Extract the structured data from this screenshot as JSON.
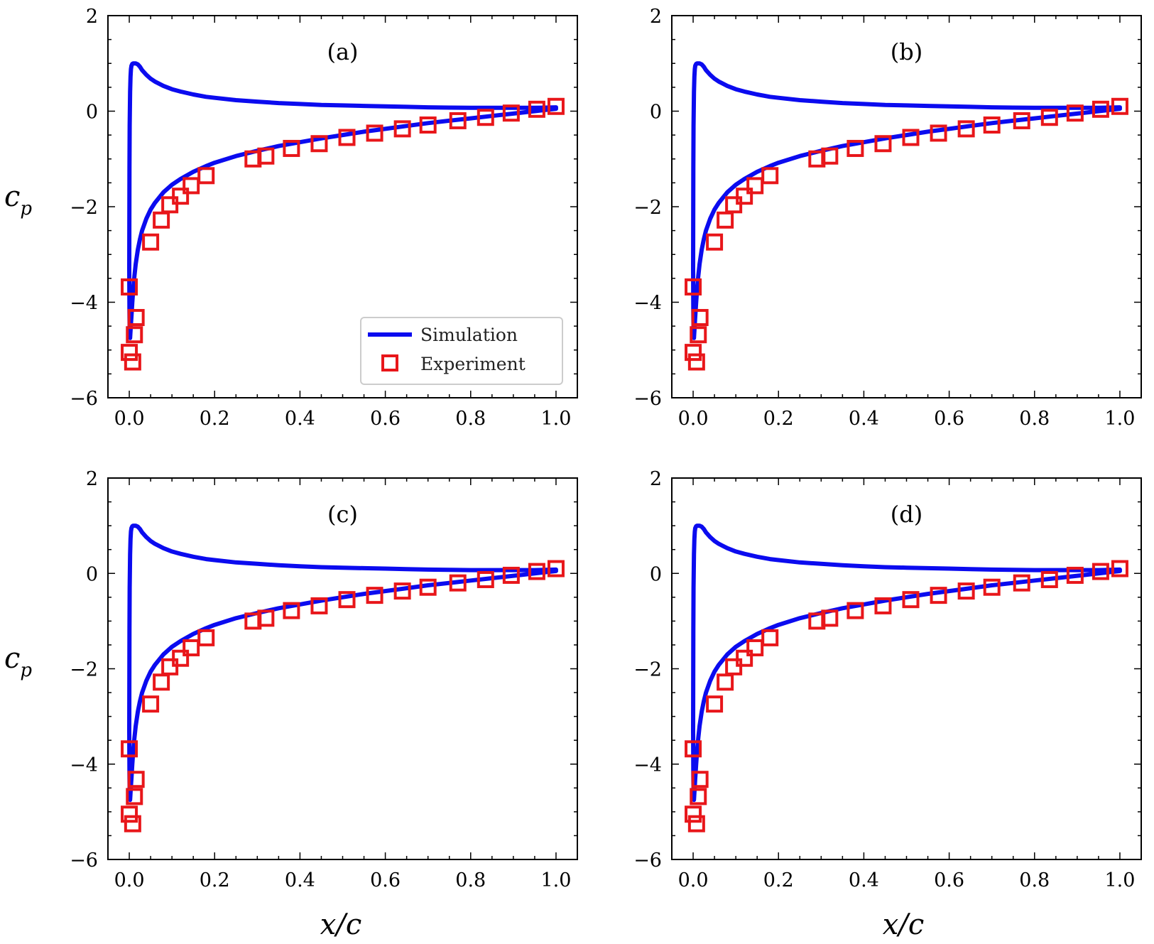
{
  "figure": {
    "xlabel": "x/c",
    "ylabel_base": "c",
    "ylabel_sub": "p",
    "legend": {
      "simulation": "Simulation",
      "experiment": "Experiment",
      "simulation_color": "#0b0bef",
      "experiment_color": "#e8161a"
    },
    "x_ticks": [
      "0.0",
      "0.2",
      "0.4",
      "0.6",
      "0.8",
      "1.0"
    ],
    "y_ticks": [
      "2",
      "0",
      "−2",
      "−4",
      "−6"
    ]
  },
  "chart_data": [
    {
      "type": "line",
      "panel_label": "(a)",
      "xlabel": "x/c",
      "ylabel": "c_p",
      "xlim": [
        -0.05,
        1.05
      ],
      "ylim": [
        -6,
        2
      ],
      "grid": false,
      "legend_position": "bottom-right",
      "series": [
        {
          "name": "Simulation",
          "kind": "line",
          "x": [
            0.0,
            0.0005,
            0.001,
            0.002,
            0.003,
            0.004,
            0.005,
            0.007,
            0.009,
            0.012,
            0.015,
            0.02,
            0.025,
            0.03,
            0.04,
            0.05,
            0.06,
            0.08,
            0.1,
            0.12,
            0.15,
            0.18,
            0.2,
            0.25,
            0.3,
            0.35,
            0.4,
            0.45,
            0.5,
            0.55,
            0.6,
            0.65,
            0.7,
            0.75,
            0.8,
            0.85,
            0.9,
            0.95,
            1.0
          ],
          "upper": [
            -3.3,
            -1.2,
            -0.3,
            0.4,
            0.72,
            0.88,
            0.95,
            0.99,
            1.0,
            1.0,
            1.0,
            0.98,
            0.93,
            0.86,
            0.76,
            0.68,
            0.62,
            0.53,
            0.46,
            0.41,
            0.35,
            0.3,
            0.28,
            0.23,
            0.2,
            0.17,
            0.15,
            0.13,
            0.12,
            0.11,
            0.1,
            0.09,
            0.08,
            0.075,
            0.07,
            0.07,
            0.07,
            0.07,
            0.08
          ],
          "lower": [
            -3.3,
            -4.2,
            -4.6,
            -4.75,
            -4.6,
            -4.45,
            -4.3,
            -4.0,
            -3.75,
            -3.45,
            -3.2,
            -2.9,
            -2.68,
            -2.5,
            -2.25,
            -2.06,
            -1.92,
            -1.7,
            -1.54,
            -1.42,
            -1.27,
            -1.15,
            -1.08,
            -0.94,
            -0.83,
            -0.73,
            -0.65,
            -0.57,
            -0.5,
            -0.43,
            -0.37,
            -0.31,
            -0.25,
            -0.2,
            -0.15,
            -0.1,
            -0.05,
            0.0,
            0.05
          ]
        },
        {
          "name": "Experiment",
          "kind": "scatter",
          "x": [
            0.0,
            0.0,
            0.008,
            0.012,
            0.016,
            0.05,
            0.075,
            0.095,
            0.12,
            0.145,
            0.18,
            0.29,
            0.32,
            0.38,
            0.445,
            0.51,
            0.575,
            0.64,
            0.7,
            0.77,
            0.835,
            0.895,
            0.955,
            1.0
          ],
          "y": [
            -3.68,
            -5.05,
            -5.25,
            -4.68,
            -4.32,
            -2.74,
            -2.28,
            -1.96,
            -1.78,
            -1.56,
            -1.35,
            -1.0,
            -0.94,
            -0.78,
            -0.68,
            -0.55,
            -0.46,
            -0.37,
            -0.29,
            -0.2,
            -0.13,
            -0.04,
            0.04,
            0.1
          ]
        }
      ]
    },
    {
      "type": "line",
      "panel_label": "(b)",
      "xlabel": "x/c",
      "ylabel": "c_p",
      "xlim": [
        -0.05,
        1.05
      ],
      "ylim": [
        -6,
        2
      ],
      "grid": false,
      "series": [
        {
          "name": "Simulation",
          "kind": "line",
          "x": [
            0.0,
            0.0005,
            0.001,
            0.002,
            0.003,
            0.004,
            0.005,
            0.007,
            0.009,
            0.012,
            0.015,
            0.02,
            0.025,
            0.03,
            0.04,
            0.05,
            0.06,
            0.08,
            0.1,
            0.12,
            0.15,
            0.18,
            0.2,
            0.25,
            0.3,
            0.35,
            0.4,
            0.45,
            0.5,
            0.55,
            0.6,
            0.65,
            0.7,
            0.75,
            0.8,
            0.85,
            0.9,
            0.95,
            1.0
          ],
          "upper": [
            -3.3,
            -1.2,
            -0.3,
            0.4,
            0.72,
            0.88,
            0.95,
            0.99,
            1.0,
            1.0,
            1.0,
            0.98,
            0.93,
            0.86,
            0.76,
            0.68,
            0.62,
            0.53,
            0.46,
            0.41,
            0.35,
            0.3,
            0.28,
            0.23,
            0.2,
            0.17,
            0.15,
            0.13,
            0.12,
            0.11,
            0.1,
            0.09,
            0.08,
            0.075,
            0.07,
            0.07,
            0.07,
            0.07,
            0.08
          ],
          "lower": [
            -3.3,
            -4.2,
            -4.6,
            -4.75,
            -4.6,
            -4.45,
            -4.3,
            -4.0,
            -3.75,
            -3.45,
            -3.2,
            -2.9,
            -2.68,
            -2.5,
            -2.25,
            -2.06,
            -1.92,
            -1.7,
            -1.54,
            -1.42,
            -1.27,
            -1.15,
            -1.08,
            -0.94,
            -0.83,
            -0.73,
            -0.65,
            -0.57,
            -0.5,
            -0.43,
            -0.37,
            -0.31,
            -0.25,
            -0.2,
            -0.15,
            -0.1,
            -0.05,
            0.0,
            0.05
          ]
        },
        {
          "name": "Experiment",
          "kind": "scatter",
          "x": [
            0.0,
            0.0,
            0.008,
            0.012,
            0.016,
            0.05,
            0.075,
            0.095,
            0.12,
            0.145,
            0.18,
            0.29,
            0.32,
            0.38,
            0.445,
            0.51,
            0.575,
            0.64,
            0.7,
            0.77,
            0.835,
            0.895,
            0.955,
            1.0
          ],
          "y": [
            -3.68,
            -5.05,
            -5.25,
            -4.68,
            -4.32,
            -2.74,
            -2.28,
            -1.96,
            -1.78,
            -1.56,
            -1.35,
            -1.0,
            -0.94,
            -0.78,
            -0.68,
            -0.55,
            -0.46,
            -0.37,
            -0.29,
            -0.2,
            -0.13,
            -0.04,
            0.04,
            0.1
          ]
        }
      ]
    },
    {
      "type": "line",
      "panel_label": "(c)",
      "xlabel": "x/c",
      "ylabel": "c_p",
      "xlim": [
        -0.05,
        1.05
      ],
      "ylim": [
        -6,
        2
      ],
      "grid": false,
      "series": [
        {
          "name": "Simulation",
          "kind": "line",
          "x": [
            0.0,
            0.0005,
            0.001,
            0.002,
            0.003,
            0.004,
            0.005,
            0.007,
            0.009,
            0.012,
            0.015,
            0.02,
            0.025,
            0.03,
            0.04,
            0.05,
            0.06,
            0.08,
            0.1,
            0.12,
            0.15,
            0.18,
            0.2,
            0.25,
            0.3,
            0.35,
            0.4,
            0.45,
            0.5,
            0.55,
            0.6,
            0.65,
            0.7,
            0.75,
            0.8,
            0.85,
            0.9,
            0.95,
            1.0
          ],
          "upper": [
            -3.3,
            -1.2,
            -0.3,
            0.4,
            0.72,
            0.88,
            0.95,
            0.99,
            1.0,
            1.0,
            1.0,
            0.98,
            0.93,
            0.86,
            0.76,
            0.68,
            0.62,
            0.53,
            0.46,
            0.41,
            0.35,
            0.3,
            0.28,
            0.23,
            0.2,
            0.17,
            0.15,
            0.13,
            0.12,
            0.11,
            0.1,
            0.09,
            0.08,
            0.075,
            0.07,
            0.07,
            0.07,
            0.07,
            0.08
          ],
          "lower": [
            -3.3,
            -4.2,
            -4.6,
            -4.75,
            -4.6,
            -4.45,
            -4.3,
            -4.0,
            -3.75,
            -3.45,
            -3.2,
            -2.9,
            -2.68,
            -2.5,
            -2.25,
            -2.06,
            -1.92,
            -1.7,
            -1.54,
            -1.42,
            -1.27,
            -1.15,
            -1.08,
            -0.94,
            -0.83,
            -0.73,
            -0.65,
            -0.57,
            -0.5,
            -0.43,
            -0.37,
            -0.31,
            -0.25,
            -0.2,
            -0.15,
            -0.1,
            -0.05,
            0.0,
            0.05
          ]
        },
        {
          "name": "Experiment",
          "kind": "scatter",
          "x": [
            0.0,
            0.0,
            0.008,
            0.012,
            0.016,
            0.05,
            0.075,
            0.095,
            0.12,
            0.145,
            0.18,
            0.29,
            0.32,
            0.38,
            0.445,
            0.51,
            0.575,
            0.64,
            0.7,
            0.77,
            0.835,
            0.895,
            0.955,
            1.0
          ],
          "y": [
            -3.68,
            -5.05,
            -5.25,
            -4.68,
            -4.32,
            -2.74,
            -2.28,
            -1.96,
            -1.78,
            -1.56,
            -1.35,
            -1.0,
            -0.94,
            -0.78,
            -0.68,
            -0.55,
            -0.46,
            -0.37,
            -0.29,
            -0.2,
            -0.13,
            -0.04,
            0.04,
            0.1
          ]
        }
      ]
    },
    {
      "type": "line",
      "panel_label": "(d)",
      "xlabel": "x/c",
      "ylabel": "c_p",
      "xlim": [
        -0.05,
        1.05
      ],
      "ylim": [
        -6,
        2
      ],
      "grid": false,
      "series": [
        {
          "name": "Simulation",
          "kind": "line",
          "x": [
            0.0,
            0.0005,
            0.001,
            0.002,
            0.003,
            0.004,
            0.005,
            0.007,
            0.009,
            0.012,
            0.015,
            0.02,
            0.025,
            0.03,
            0.04,
            0.05,
            0.06,
            0.08,
            0.1,
            0.12,
            0.15,
            0.18,
            0.2,
            0.25,
            0.3,
            0.35,
            0.4,
            0.45,
            0.5,
            0.55,
            0.6,
            0.65,
            0.7,
            0.75,
            0.8,
            0.85,
            0.9,
            0.95,
            1.0
          ],
          "upper": [
            -3.3,
            -1.2,
            -0.3,
            0.4,
            0.72,
            0.88,
            0.95,
            0.99,
            1.0,
            1.0,
            1.0,
            0.98,
            0.93,
            0.86,
            0.76,
            0.68,
            0.62,
            0.53,
            0.46,
            0.41,
            0.35,
            0.3,
            0.28,
            0.23,
            0.2,
            0.17,
            0.15,
            0.13,
            0.12,
            0.11,
            0.1,
            0.09,
            0.08,
            0.075,
            0.07,
            0.07,
            0.07,
            0.07,
            0.08
          ],
          "lower": [
            -3.3,
            -4.2,
            -4.6,
            -4.75,
            -4.6,
            -4.45,
            -4.3,
            -4.0,
            -3.75,
            -3.45,
            -3.2,
            -2.9,
            -2.68,
            -2.5,
            -2.25,
            -2.06,
            -1.92,
            -1.7,
            -1.54,
            -1.42,
            -1.27,
            -1.15,
            -1.08,
            -0.94,
            -0.83,
            -0.73,
            -0.65,
            -0.57,
            -0.5,
            -0.43,
            -0.37,
            -0.31,
            -0.25,
            -0.2,
            -0.15,
            -0.1,
            -0.05,
            0.0,
            0.05
          ]
        },
        {
          "name": "Experiment",
          "kind": "scatter",
          "x": [
            0.0,
            0.0,
            0.008,
            0.012,
            0.016,
            0.05,
            0.075,
            0.095,
            0.12,
            0.145,
            0.18,
            0.29,
            0.32,
            0.38,
            0.445,
            0.51,
            0.575,
            0.64,
            0.7,
            0.77,
            0.835,
            0.895,
            0.955,
            1.0
          ],
          "y": [
            -3.68,
            -5.05,
            -5.25,
            -4.68,
            -4.32,
            -2.74,
            -2.28,
            -1.96,
            -1.78,
            -1.56,
            -1.35,
            -1.0,
            -0.94,
            -0.78,
            -0.68,
            -0.55,
            -0.46,
            -0.37,
            -0.29,
            -0.2,
            -0.13,
            -0.04,
            0.04,
            0.1
          ]
        }
      ]
    }
  ]
}
